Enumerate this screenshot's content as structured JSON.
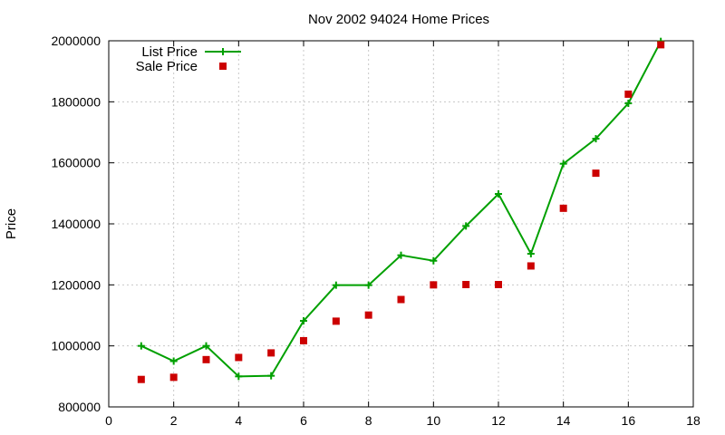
{
  "chart_data": {
    "type": "line",
    "title": "Nov 2002 94024 Home Prices",
    "xlabel": "",
    "ylabel": "Price",
    "xlim": [
      0,
      18
    ],
    "ylim": [
      800000,
      2000000
    ],
    "xticks": [
      0,
      2,
      4,
      6,
      8,
      10,
      12,
      14,
      16,
      18
    ],
    "yticks": [
      800000,
      1000000,
      1200000,
      1400000,
      1600000,
      1800000,
      2000000
    ],
    "grid": true,
    "legend_position": "top-left",
    "series": [
      {
        "name": "List Price",
        "style": "line-with-plus-markers",
        "color": "#00a000",
        "x": [
          1,
          2,
          3,
          4,
          5,
          6,
          7,
          8,
          9,
          10,
          11,
          12,
          13,
          14,
          15,
          16,
          17
        ],
        "values": [
          1000000,
          950000,
          1000000,
          900000,
          902000,
          1082000,
          1199000,
          1199000,
          1297000,
          1279000,
          1393000,
          1498000,
          1302000,
          1597000,
          1679000,
          1795000,
          1998000
        ]
      },
      {
        "name": "Sale Price",
        "style": "square-markers",
        "color": "#cc0000",
        "x": [
          1,
          2,
          3,
          4,
          5,
          6,
          7,
          8,
          9,
          10,
          11,
          12,
          13,
          14,
          15,
          16,
          17
        ],
        "values": [
          890000,
          897000,
          955000,
          962000,
          977000,
          1017000,
          1081000,
          1101000,
          1152000,
          1200000,
          1201000,
          1201000,
          1262000,
          1451000,
          1566000,
          1825000,
          1987000
        ]
      }
    ]
  }
}
